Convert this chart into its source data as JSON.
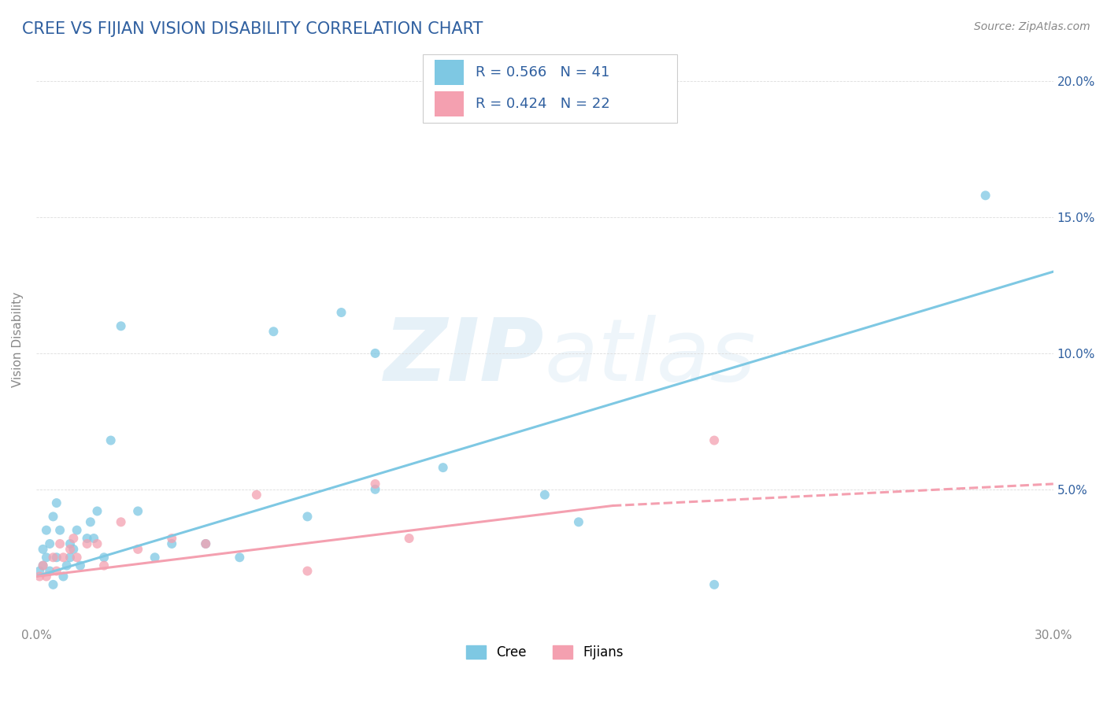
{
  "title": "CREE VS FIJIAN VISION DISABILITY CORRELATION CHART",
  "source": "Source: ZipAtlas.com",
  "ylabel": "Vision Disability",
  "watermark": "ZIPatlas",
  "xlim": [
    0.0,
    0.3
  ],
  "ylim": [
    0.0,
    0.21
  ],
  "yticks": [
    0.0,
    0.05,
    0.1,
    0.15,
    0.2
  ],
  "ytick_labels_right": [
    "",
    "5.0%",
    "10.0%",
    "15.0%",
    "20.0%"
  ],
  "xticks": [
    0.0,
    0.05,
    0.1,
    0.15,
    0.2,
    0.25,
    0.3
  ],
  "xtick_labels": [
    "0.0%",
    "",
    "",
    "",
    "",
    "",
    "30.0%"
  ],
  "legend_r_cree": "R = 0.566",
  "legend_n_cree": "N = 41",
  "legend_r_fijian": "R = 0.424",
  "legend_n_fijian": "N = 22",
  "cree_color": "#7ec8e3",
  "fijian_color": "#f4a0b0",
  "title_color": "#3060a0",
  "axis_label_color": "#3060a0",
  "tick_color": "#888888",
  "cree_scatter_x": [
    0.001,
    0.002,
    0.002,
    0.003,
    0.003,
    0.004,
    0.004,
    0.005,
    0.005,
    0.006,
    0.006,
    0.007,
    0.008,
    0.009,
    0.01,
    0.01,
    0.011,
    0.012,
    0.013,
    0.015,
    0.016,
    0.017,
    0.018,
    0.02,
    0.022,
    0.025,
    0.03,
    0.035,
    0.04,
    0.05,
    0.06,
    0.07,
    0.08,
    0.09,
    0.1,
    0.12,
    0.15,
    0.16,
    0.2,
    0.1,
    0.28
  ],
  "cree_scatter_y": [
    0.02,
    0.028,
    0.022,
    0.035,
    0.025,
    0.03,
    0.02,
    0.04,
    0.015,
    0.045,
    0.025,
    0.035,
    0.018,
    0.022,
    0.025,
    0.03,
    0.028,
    0.035,
    0.022,
    0.032,
    0.038,
    0.032,
    0.042,
    0.025,
    0.068,
    0.11,
    0.042,
    0.025,
    0.03,
    0.03,
    0.025,
    0.108,
    0.04,
    0.115,
    0.05,
    0.058,
    0.048,
    0.038,
    0.015,
    0.1,
    0.158
  ],
  "fijian_scatter_x": [
    0.001,
    0.002,
    0.003,
    0.005,
    0.006,
    0.007,
    0.008,
    0.01,
    0.011,
    0.012,
    0.015,
    0.018,
    0.02,
    0.025,
    0.03,
    0.04,
    0.05,
    0.065,
    0.08,
    0.1,
    0.11,
    0.2
  ],
  "fijian_scatter_y": [
    0.018,
    0.022,
    0.018,
    0.025,
    0.02,
    0.03,
    0.025,
    0.028,
    0.032,
    0.025,
    0.03,
    0.03,
    0.022,
    0.038,
    0.028,
    0.032,
    0.03,
    0.048,
    0.02,
    0.052,
    0.032,
    0.068
  ],
  "cree_line_x": [
    0.0,
    0.3
  ],
  "cree_line_y": [
    0.018,
    0.13
  ],
  "fijian_solid_line_x": [
    0.0,
    0.17
  ],
  "fijian_solid_line_y": [
    0.018,
    0.044
  ],
  "fijian_dashed_line_x": [
    0.17,
    0.3
  ],
  "fijian_dashed_line_y": [
    0.044,
    0.052
  ],
  "grid_color": "#dddddd",
  "legend_box_color": "#eeeeee"
}
